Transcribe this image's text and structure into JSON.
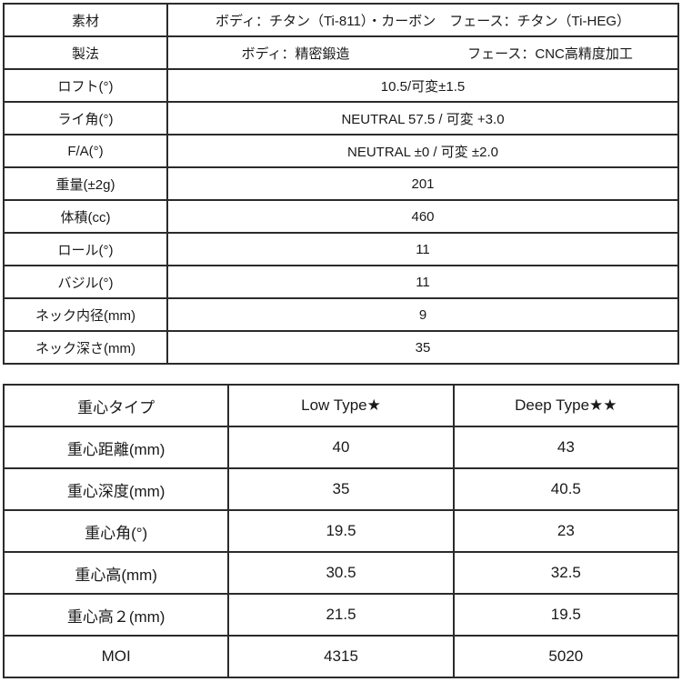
{
  "colors": {
    "text": "#1a1a1a",
    "border": "#2b2b2b",
    "background": "#ffffff"
  },
  "spec_table": {
    "rows": [
      {
        "label": "素材",
        "value": "ボディ：チタン（Ti-811）・カーボン　フェース：チタン（Ti-HEG）"
      },
      {
        "label": "製法",
        "value_left": "ボディ：精密鍛造",
        "value_right": "フェース：CNC高精度加工"
      },
      {
        "label": "ロフト(°)",
        "value": "10.5/可変±1.5"
      },
      {
        "label": "ライ角(°)",
        "value": "NEUTRAL 57.5 / 可変 +3.0"
      },
      {
        "label": "F/A(°)",
        "value": "NEUTRAL ±0 / 可変 ±2.0"
      },
      {
        "label": "重量(±2g)",
        "value": "201"
      },
      {
        "label": "体積(cc)",
        "value": "460"
      },
      {
        "label": "ロール(°)",
        "value": "11"
      },
      {
        "label": "バジル(°)",
        "value": "11"
      },
      {
        "label": "ネック内径(mm)",
        "value": "9"
      },
      {
        "label": "ネック深さ(mm)",
        "value": "35"
      }
    ]
  },
  "cg_table": {
    "header": {
      "col0": "重心タイプ",
      "col1": "Low Type★",
      "col2": "Deep Type★★"
    },
    "rows": [
      {
        "label": "重心距離(mm)",
        "low": "40",
        "deep": "43"
      },
      {
        "label": "重心深度(mm)",
        "low": "35",
        "deep": "40.5"
      },
      {
        "label": "重心角(°)",
        "low": "19.5",
        "deep": "23"
      },
      {
        "label": "重心高(mm)",
        "low": "30.5",
        "deep": "32.5"
      },
      {
        "label": "重心高２(mm)",
        "low": "21.5",
        "deep": "19.5"
      },
      {
        "label": "MOI",
        "low": "4315",
        "deep": "5020"
      }
    ]
  }
}
